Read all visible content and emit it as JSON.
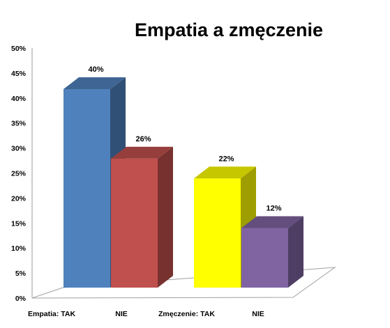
{
  "chart_data": {
    "type": "bar",
    "title": "Empatia a zmęczenie",
    "categories": [
      "Empatia: TAK",
      "NIE",
      "Zmęczenie: TAK",
      "NIE"
    ],
    "values": [
      40,
      26,
      22,
      12
    ],
    "data_labels": [
      "40%",
      "26%",
      "22%",
      "12%"
    ],
    "colors": [
      "#4f81bd",
      "#c0504d",
      "#ffff00",
      "#8064a2"
    ],
    "yticks": [
      "0%",
      "5%",
      "10%",
      "15%",
      "20%",
      "25%",
      "30%",
      "35%",
      "40%",
      "45%",
      "50%"
    ],
    "ylim": [
      0,
      50
    ],
    "style": "3d-column",
    "grid": false,
    "legend": "none"
  }
}
